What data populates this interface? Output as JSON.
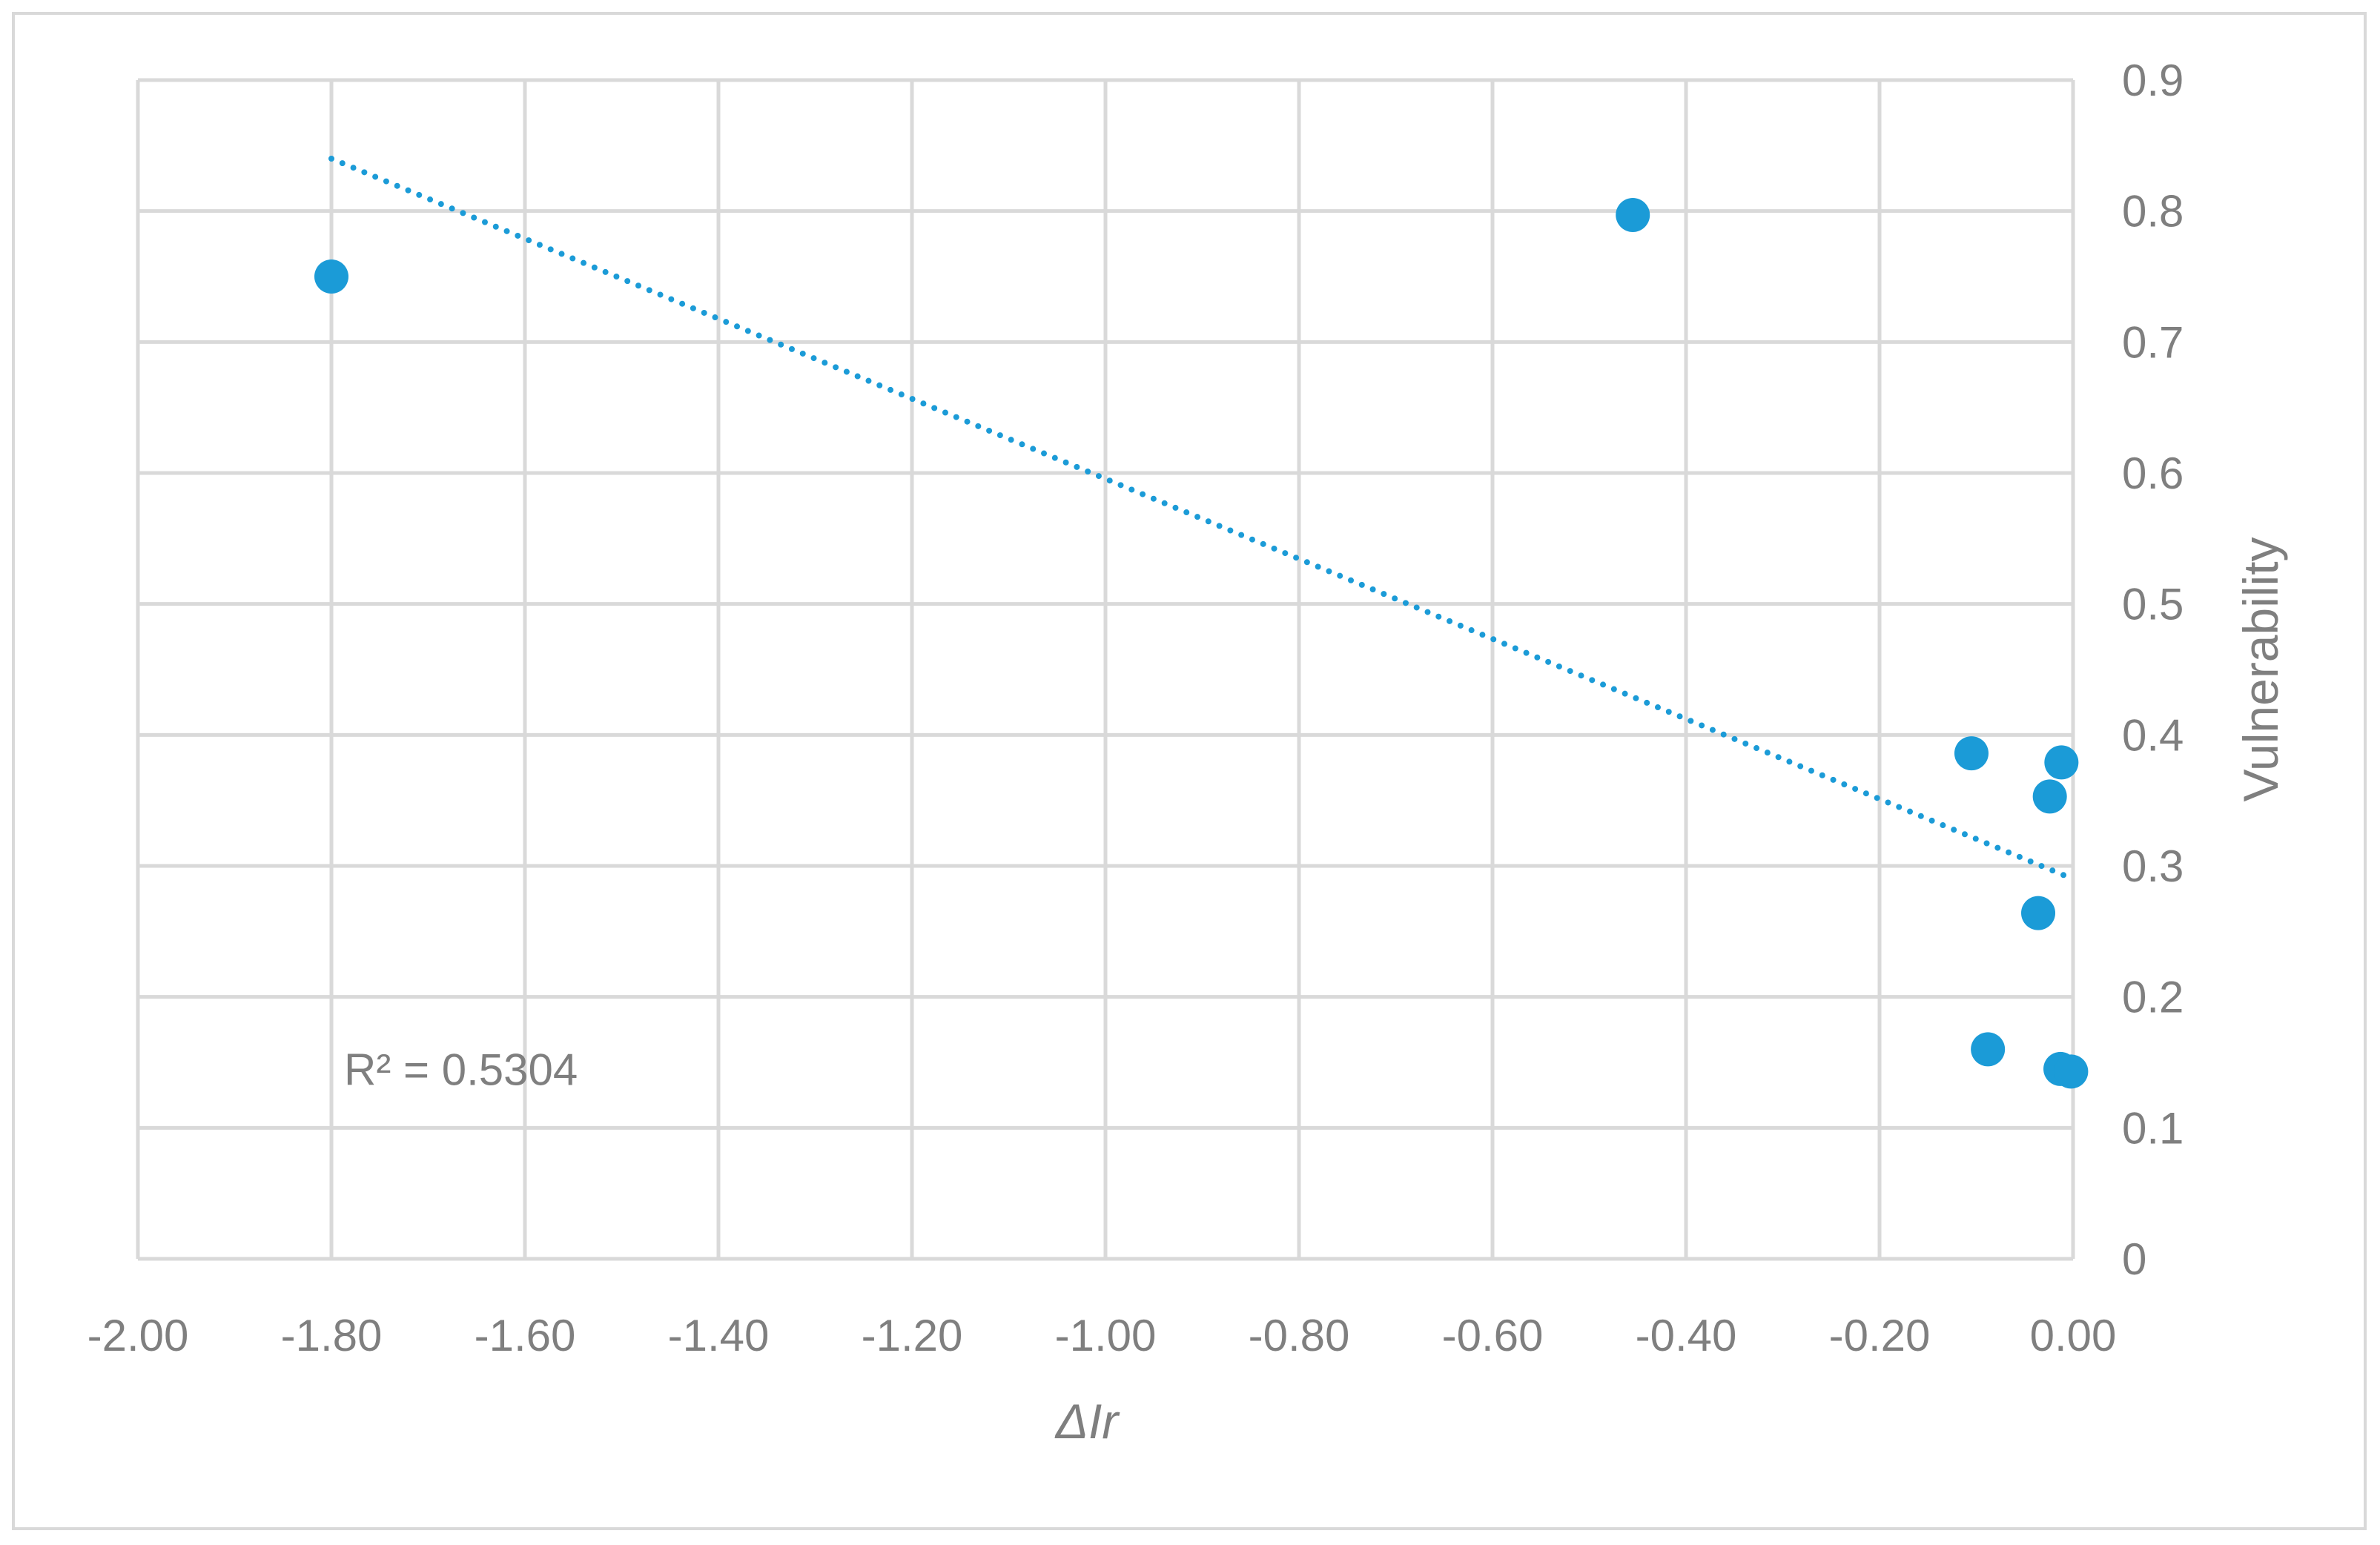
{
  "chart_data": {
    "type": "scatter",
    "title": "",
    "xlabel_italic_parts": [
      "Δ",
      "Ir"
    ],
    "xlabel": "ΔIr",
    "ylabel": "Vulnerability",
    "xlim": [
      -2.0,
      0.0
    ],
    "ylim": [
      0,
      0.9
    ],
    "x_ticks": [
      -2.0,
      -1.8,
      -1.6,
      -1.4,
      -1.2,
      -1.0,
      -0.8,
      -0.6,
      -0.4,
      -0.2,
      0.0
    ],
    "x_tick_labels": [
      "-2.00",
      "-1.80",
      "-1.60",
      "-1.40",
      "-1.20",
      "-1.00",
      "-0.80",
      "-0.60",
      "-0.40",
      "-0.20",
      "0.00"
    ],
    "y_ticks": [
      0,
      0.1,
      0.2,
      0.3,
      0.4,
      0.5,
      0.6,
      0.7,
      0.8,
      0.9
    ],
    "y_tick_labels": [
      "0",
      "0.1",
      "0.2",
      "0.3",
      "0.4",
      "0.5",
      "0.6",
      "0.7",
      "0.8",
      "0.9"
    ],
    "y_axis_position": "right",
    "grid": true,
    "series": [
      {
        "color": "#1b9bd7",
        "points": [
          {
            "x": -1.8,
            "y": 0.75
          },
          {
            "x": -0.455,
            "y": 0.797
          },
          {
            "x": -0.105,
            "y": 0.386
          },
          {
            "x": -0.012,
            "y": 0.379
          },
          {
            "x": -0.024,
            "y": 0.353
          },
          {
            "x": -0.036,
            "y": 0.264
          },
          {
            "x": -0.088,
            "y": 0.16
          },
          {
            "x": -0.013,
            "y": 0.145
          },
          {
            "x": -0.002,
            "y": 0.143
          }
        ]
      }
    ],
    "trendline": {
      "type": "linear",
      "style": "dotted",
      "color": "#1b9bd7",
      "x_start": -1.8,
      "y_start": 0.84,
      "x_end": 0.0,
      "y_end": 0.29
    },
    "annotation": {
      "text": "R² = 0.5304",
      "anchor_x": -1.79,
      "anchor_y": 0.143
    }
  }
}
